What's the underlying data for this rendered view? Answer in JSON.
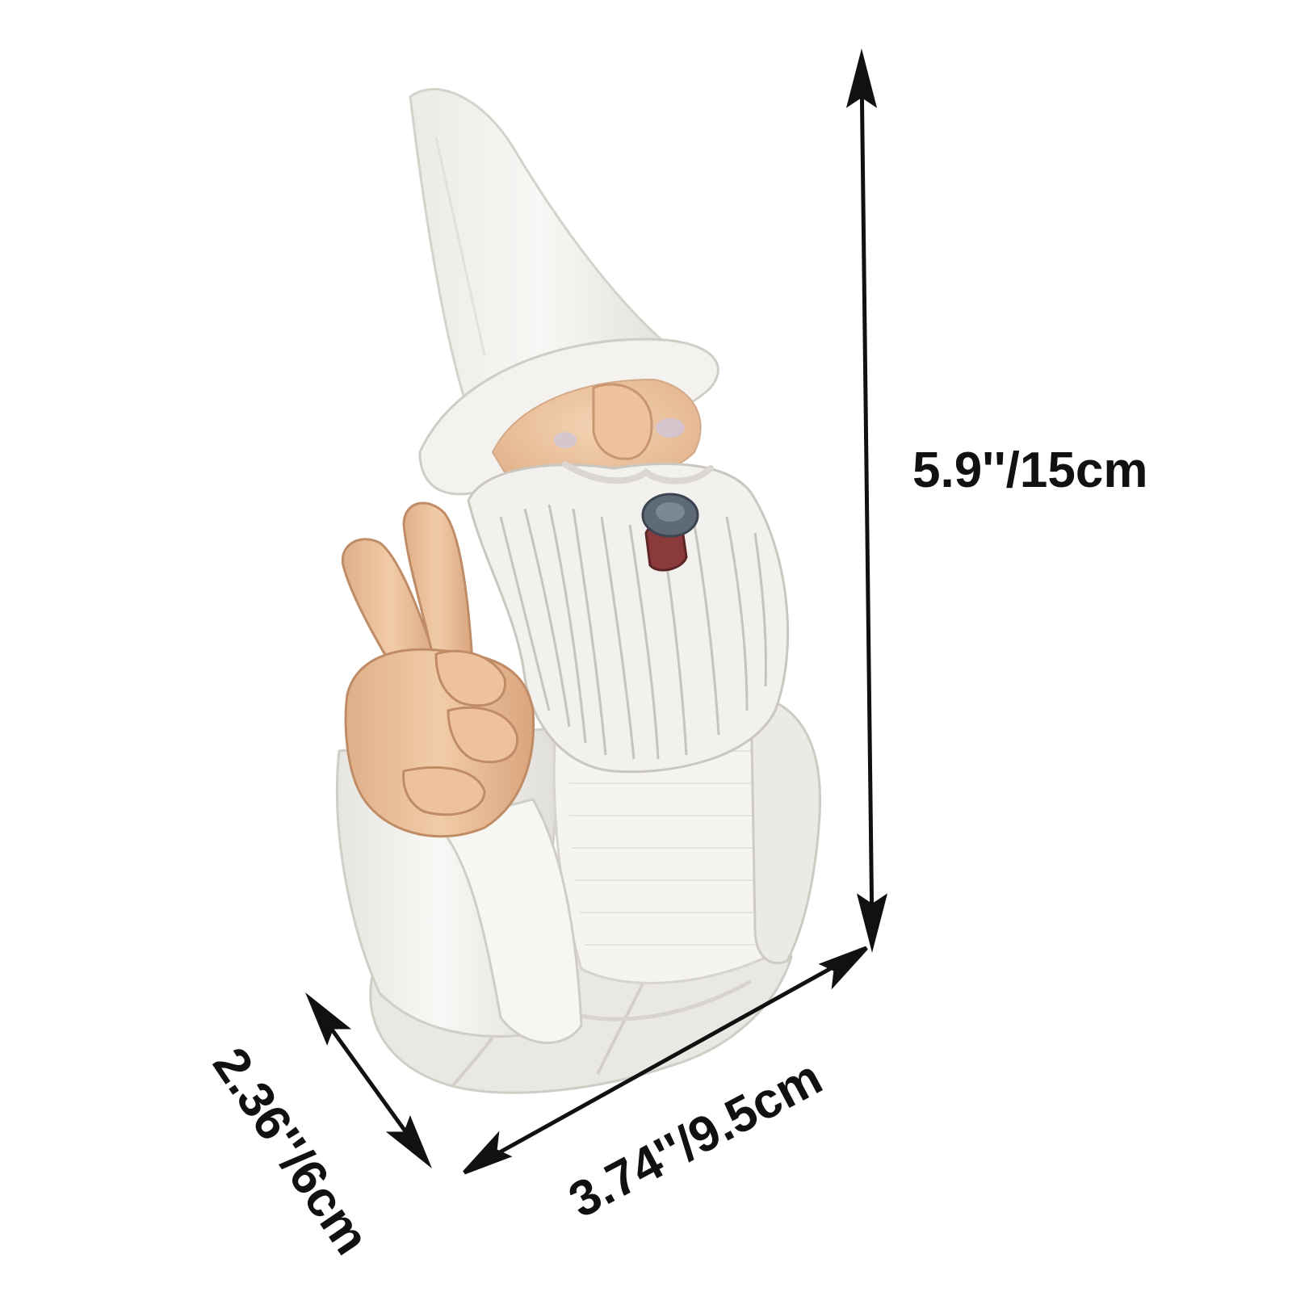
{
  "dimensions": {
    "height_label": "5.9''/15cm",
    "width_label": "3.74''/9.5cm",
    "depth_label": "2.36''/6cm"
  },
  "figure": {
    "subject": "gnome-figurine-icon",
    "palette": {
      "white": "#f4f3f0",
      "shadow": "#dcdbd6",
      "skin": "#efc9a6",
      "skin_shadow": "#d9a982",
      "cigar": "#8a3a3a",
      "ash": "#5f6a77",
      "ink": "#111111"
    }
  }
}
